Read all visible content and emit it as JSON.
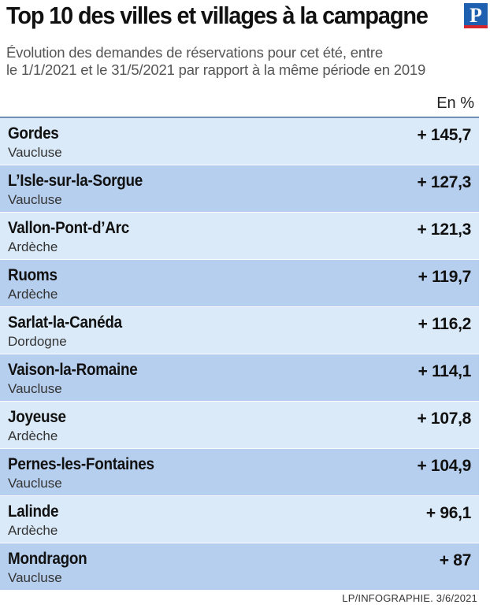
{
  "header": {
    "title": "Top 10 des villes et villages à la campagne",
    "logo_letter": "P",
    "subtitle_line1": "Évolution des demandes de réservations pour cet été, entre",
    "subtitle_line2": "le 1/1/2021 et le 31/5/2021 par rapport à la même période en 2019"
  },
  "unit_label": "En %",
  "colors": {
    "row_light": "#daeaf8",
    "row_dark": "#b7cfee",
    "rule": "#6f8fb5",
    "logo_blue": "#1f5fb0",
    "logo_red": "#d22630"
  },
  "chart_data": {
    "type": "table",
    "title": "Top 10 des villes et villages à la campagne",
    "subtitle": "Évolution des demandes de réservations pour cet été, entre le 1/1/2021 et le 31/5/2021 par rapport à la même période en 2019",
    "unit": "En %",
    "columns": [
      "city",
      "department",
      "change_percent"
    ],
    "rows": [
      {
        "city": "Gordes",
        "department": "Vaucluse",
        "value": 145.7,
        "display": "+ 145,7"
      },
      {
        "city": "L’Isle-sur-la-Sorgue",
        "department": "Vaucluse",
        "value": 127.3,
        "display": "+ 127,3"
      },
      {
        "city": "Vallon-Pont-d’Arc",
        "department": "Ardèche",
        "value": 121.3,
        "display": "+ 121,3"
      },
      {
        "city": "Ruoms",
        "department": "Ardèche",
        "value": 119.7,
        "display": "+ 119,7"
      },
      {
        "city": "Sarlat-la-Canéda",
        "department": "Dordogne",
        "value": 116.2,
        "display": "+ 116,2"
      },
      {
        "city": "Vaison-la-Romaine",
        "department": "Vaucluse",
        "value": 114.1,
        "display": "+ 114,1"
      },
      {
        "city": "Joyeuse",
        "department": "Ardèche",
        "value": 107.8,
        "display": "+ 107,8"
      },
      {
        "city": "Pernes-les-Fontaines",
        "department": "Vaucluse",
        "value": 104.9,
        "display": "+ 104,9"
      },
      {
        "city": "Lalinde",
        "department": "Ardèche",
        "value": 96.1,
        "display": "+ 96,1"
      },
      {
        "city": "Mondragon",
        "department": "Vaucluse",
        "value": 87,
        "display": "+ 87"
      }
    ]
  },
  "footer": {
    "credit": "LP/INFOGRAPHIE. 3/6/2021"
  }
}
